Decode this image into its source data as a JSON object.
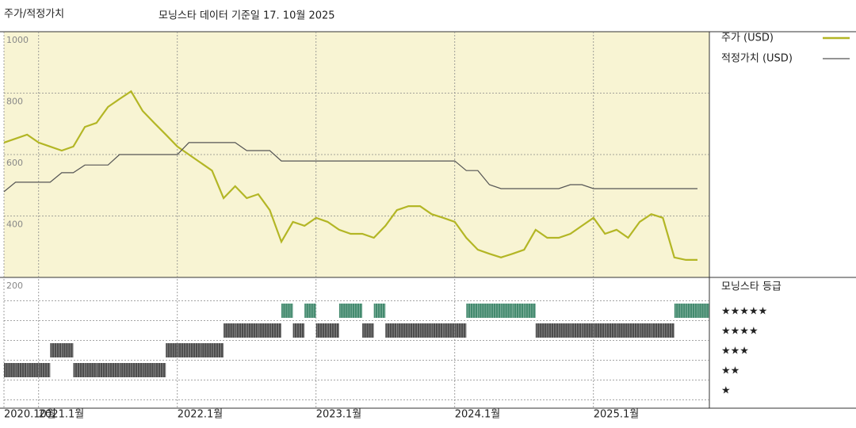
{
  "chart_data": [
    {
      "type": "line",
      "title": "주가/적정가치",
      "subtitle": "모닝스타 데이터 기준일 17. 10월 2025",
      "x": [
        "2020-10",
        "2020-11",
        "2020-12",
        "2021-01",
        "2021-02",
        "2021-03",
        "2021-04",
        "2021-05",
        "2021-06",
        "2021-07",
        "2021-08",
        "2021-09",
        "2021-10",
        "2021-11",
        "2021-12",
        "2022-01",
        "2022-02",
        "2022-03",
        "2022-04",
        "2022-05",
        "2022-06",
        "2022-07",
        "2022-08",
        "2022-09",
        "2022-10",
        "2022-11",
        "2022-12",
        "2023-01",
        "2023-02",
        "2023-03",
        "2023-04",
        "2023-05",
        "2023-06",
        "2023-07",
        "2023-08",
        "2023-09",
        "2023-10",
        "2023-11",
        "2023-12",
        "2024-01",
        "2024-02",
        "2024-03",
        "2024-04",
        "2024-05",
        "2024-06",
        "2024-07",
        "2024-08",
        "2024-09",
        "2024-10",
        "2024-11",
        "2024-12",
        "2025-01",
        "2025-02",
        "2025-03",
        "2025-04",
        "2025-05",
        "2025-06",
        "2025-07",
        "2025-08",
        "2025-09",
        "2025-10"
      ],
      "xlim": [
        "2020-10",
        "2025-10"
      ],
      "xticks": [
        {
          "value": "2020-10",
          "label": "2020.10월"
        },
        {
          "value": "2021-01",
          "label": "2021.1월"
        },
        {
          "value": "2022-01",
          "label": "2022.1월"
        },
        {
          "value": "2023-01",
          "label": "2023.1월"
        },
        {
          "value": "2024-01",
          "label": "2024.1월"
        },
        {
          "value": "2025-01",
          "label": "2025.1월"
        }
      ],
      "ylim": [
        200,
        1000
      ],
      "yticks": [
        200,
        400,
        600,
        800,
        1000
      ],
      "grid": true,
      "series": [
        {
          "name": "주가 (USD)",
          "color": "#b3b625",
          "values": [
            639,
            652,
            665,
            639,
            626,
            613,
            626,
            690,
            703,
            755,
            781,
            806,
            742,
            703,
            665,
            626,
            600,
            574,
            548,
            458,
            497,
            458,
            471,
            419,
            316,
            381,
            368,
            394,
            381,
            355,
            342,
            342,
            329,
            368,
            419,
            432,
            432,
            406,
            394,
            381,
            329,
            290,
            277,
            265,
            277,
            290,
            355,
            329,
            329,
            342,
            368,
            394,
            342,
            355,
            329,
            381,
            406,
            394,
            265,
            257,
            257
          ]
        },
        {
          "name": "적정가치 (USD)",
          "color": "#555555",
          "values": [
            479,
            510,
            510,
            510,
            510,
            541,
            541,
            566,
            566,
            566,
            600,
            600,
            600,
            600,
            600,
            600,
            639,
            639,
            639,
            639,
            639,
            613,
            613,
            613,
            579,
            579,
            579,
            579,
            579,
            579,
            579,
            579,
            579,
            579,
            579,
            579,
            579,
            579,
            579,
            579,
            548,
            548,
            502,
            489,
            489,
            489,
            489,
            489,
            489,
            502,
            502,
            489,
            489,
            489,
            489,
            489,
            489,
            489,
            489,
            489,
            489
          ]
        }
      ]
    },
    {
      "type": "rating",
      "title": "모닝스타 등급",
      "x": [
        "2020-10",
        "2020-11",
        "2020-12",
        "2021-01",
        "2021-02",
        "2021-03",
        "2021-04",
        "2021-05",
        "2021-06",
        "2021-07",
        "2021-08",
        "2021-09",
        "2021-10",
        "2021-11",
        "2021-12",
        "2022-01",
        "2022-02",
        "2022-03",
        "2022-04",
        "2022-05",
        "2022-06",
        "2022-07",
        "2022-08",
        "2022-09",
        "2022-10",
        "2022-11",
        "2022-12",
        "2023-01",
        "2023-02",
        "2023-03",
        "2023-04",
        "2023-05",
        "2023-06",
        "2023-07",
        "2023-08",
        "2023-09",
        "2023-10",
        "2023-11",
        "2023-12",
        "2024-01",
        "2024-02",
        "2024-03",
        "2024-04",
        "2024-05",
        "2024-06",
        "2024-07",
        "2024-08",
        "2024-09",
        "2024-10",
        "2024-11",
        "2024-12",
        "2025-01",
        "2025-02",
        "2025-03",
        "2025-04",
        "2025-05",
        "2025-06",
        "2025-07",
        "2025-08",
        "2025-09",
        "2025-10"
      ],
      "values": [
        2,
        2,
        2,
        2,
        3,
        3,
        2,
        2,
        2,
        2,
        2,
        2,
        2,
        2,
        3,
        3,
        3,
        3,
        3,
        4,
        4,
        4,
        4,
        4,
        5,
        4,
        5,
        4,
        4,
        5,
        5,
        4,
        5,
        4,
        4,
        4,
        4,
        4,
        4,
        4,
        5,
        5,
        5,
        5,
        5,
        5,
        4,
        4,
        4,
        4,
        4,
        4,
        4,
        4,
        4,
        4,
        4,
        4,
        5,
        5,
        5
      ],
      "ratings": [
        {
          "value": 5,
          "label": "★★★★★"
        },
        {
          "value": 4,
          "label": "★★★★"
        },
        {
          "value": 3,
          "label": "★★★"
        },
        {
          "value": 2,
          "label": "★★"
        },
        {
          "value": 1,
          "label": "★"
        }
      ],
      "color": "#3a3a3a",
      "top_color": "#2f7d5e"
    }
  ]
}
